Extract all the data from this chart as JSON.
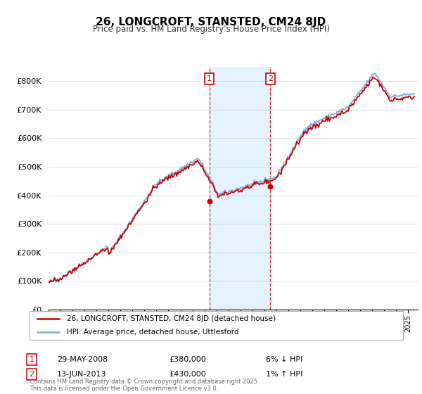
{
  "title": "26, LONGCROFT, STANSTED, CM24 8JD",
  "subtitle": "Price paid vs. HM Land Registry's House Price Index (HPI)",
  "sale1_date": "29-MAY-2008",
  "sale1_price": 380000,
  "sale1_label": "6% ↓ HPI",
  "sale2_date": "13-JUN-2013",
  "sale2_price": 430000,
  "sale2_label": "1% ↑ HPI",
  "legend_label1": "26, LONGCROFT, STANSTED, CM24 8JD (detached house)",
  "legend_label2": "HPI: Average price, detached house, Uttlesford",
  "footer": "Contains HM Land Registry data © Crown copyright and database right 2025.\nThis data is licensed under the Open Government Licence v3.0.",
  "line_color_sold": "#cc0000",
  "line_color_hpi": "#7aaddc",
  "sale_marker_color": "#cc0000",
  "shading_color": "#ddeeff",
  "ylim_max": 850000
}
